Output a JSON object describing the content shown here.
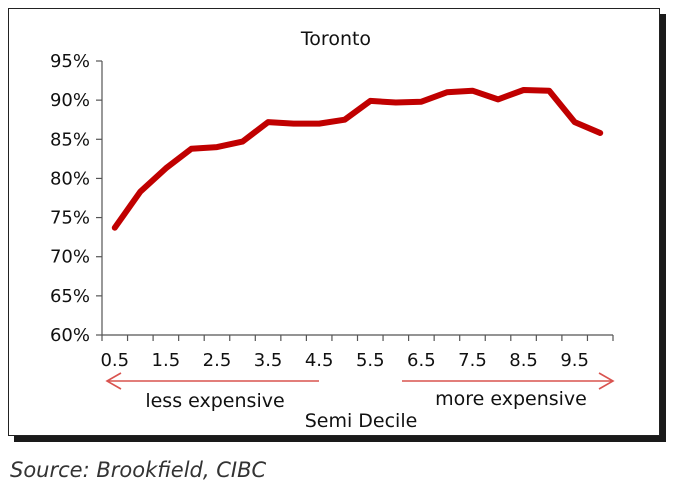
{
  "chart_data": {
    "type": "line",
    "title": "Toronto",
    "xlabel": "Semi Decile",
    "ylabel": "",
    "x": [
      0.5,
      1.0,
      1.5,
      2.0,
      2.5,
      3.0,
      3.5,
      4.0,
      4.5,
      5.0,
      5.5,
      6.0,
      6.5,
      7.0,
      7.5,
      8.0,
      8.5,
      9.0,
      9.5,
      10.0
    ],
    "x_tick_labels": [
      "0.5",
      "1.5",
      "2.5",
      "3.5",
      "4.5",
      "5.5",
      "6.5",
      "7.5",
      "8.5",
      "9.5"
    ],
    "y_tick_labels": [
      "60%",
      "65%",
      "70%",
      "75%",
      "80%",
      "85%",
      "90%",
      "95%"
    ],
    "ylim": [
      60,
      95
    ],
    "series": [
      {
        "values": [
          73.7,
          78.3,
          81.3,
          83.8,
          84.0,
          84.7,
          87.2,
          87.0,
          87.0,
          87.5,
          89.9,
          89.7,
          89.8,
          91.0,
          91.2,
          90.1,
          91.3,
          91.2,
          87.2,
          85.8
        ]
      }
    ],
    "annotations": {
      "left": "less expensive",
      "right": "more expensive"
    },
    "grid": false,
    "colors": {
      "line": "#c00000",
      "arrow": "#d9534f"
    }
  },
  "source": "Source: Brookfield, CIBC"
}
